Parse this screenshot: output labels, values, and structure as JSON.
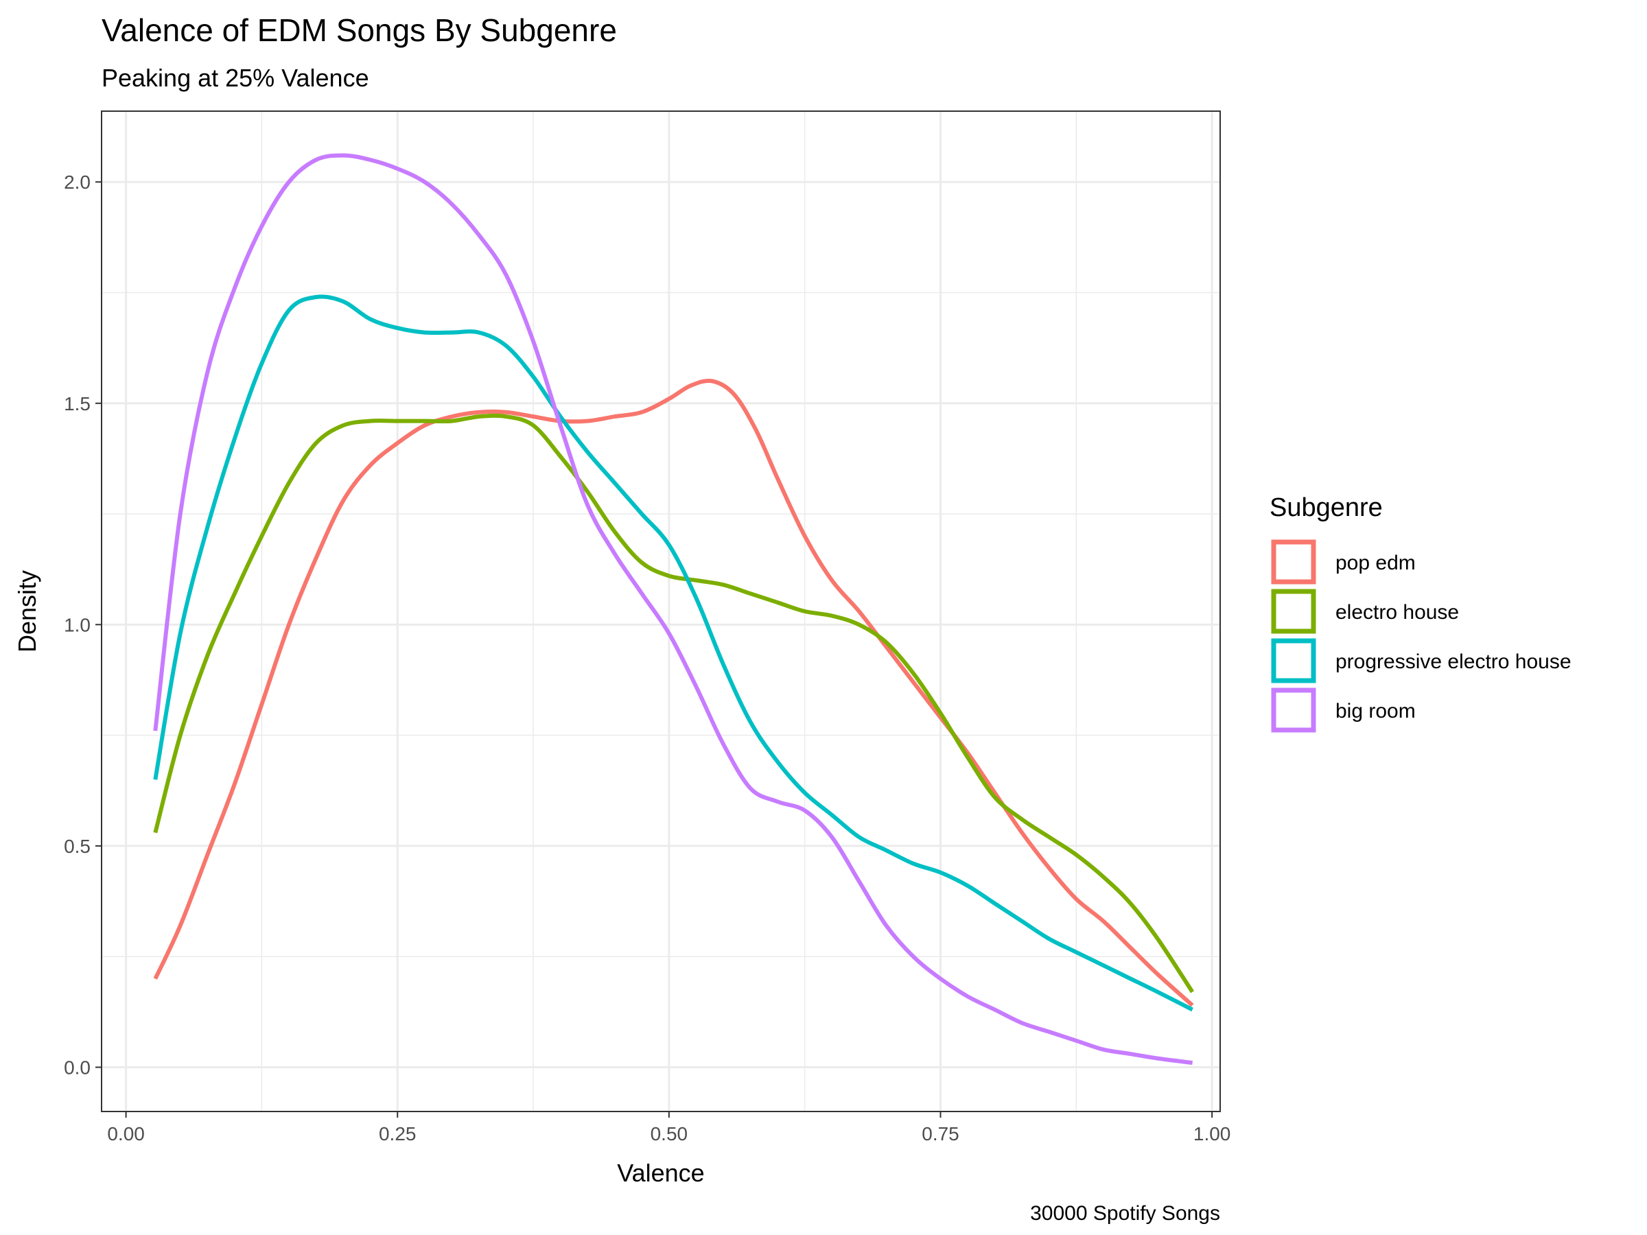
{
  "chart_data": {
    "type": "line",
    "title": "Valence of EDM Songs By Subgenre",
    "subtitle": "Peaking at 25% Valence",
    "caption": "30000 Spotify Songs",
    "xlabel": "Valence",
    "ylabel": "Density",
    "xlim": [
      -0.0225,
      1.0075
    ],
    "ylim": [
      -0.1,
      2.16
    ],
    "x_ticks": [
      0.0,
      0.25,
      0.5,
      0.75,
      1.0
    ],
    "x_tick_labels": [
      "0.00",
      "0.25",
      "0.50",
      "0.75",
      "1.00"
    ],
    "y_ticks": [
      0.0,
      0.5,
      1.0,
      1.5,
      2.0
    ],
    "y_tick_labels": [
      "0.0",
      "0.5",
      "1.0",
      "1.5",
      "2.0"
    ],
    "grid": true,
    "legend": {
      "title": "Subgenre",
      "position": "right"
    },
    "series": [
      {
        "name": "pop edm",
        "color": "#F8766D",
        "x": [
          0.027,
          0.05,
          0.075,
          0.1,
          0.125,
          0.15,
          0.175,
          0.2,
          0.225,
          0.25,
          0.275,
          0.3,
          0.325,
          0.35,
          0.375,
          0.4,
          0.425,
          0.45,
          0.475,
          0.5,
          0.52,
          0.54,
          0.56,
          0.58,
          0.6,
          0.625,
          0.65,
          0.675,
          0.7,
          0.725,
          0.75,
          0.775,
          0.8,
          0.825,
          0.85,
          0.875,
          0.9,
          0.925,
          0.95,
          0.982
        ],
        "values": [
          0.2,
          0.32,
          0.48,
          0.64,
          0.82,
          1.0,
          1.15,
          1.28,
          1.36,
          1.41,
          1.45,
          1.47,
          1.48,
          1.48,
          1.47,
          1.46,
          1.46,
          1.47,
          1.48,
          1.51,
          1.54,
          1.55,
          1.52,
          1.44,
          1.33,
          1.2,
          1.1,
          1.03,
          0.95,
          0.87,
          0.79,
          0.71,
          0.62,
          0.53,
          0.45,
          0.38,
          0.33,
          0.27,
          0.21,
          0.14
        ]
      },
      {
        "name": "electro house",
        "color": "#7CAE00",
        "x": [
          0.027,
          0.05,
          0.075,
          0.1,
          0.125,
          0.15,
          0.175,
          0.2,
          0.225,
          0.25,
          0.275,
          0.3,
          0.325,
          0.35,
          0.375,
          0.4,
          0.425,
          0.45,
          0.475,
          0.5,
          0.525,
          0.55,
          0.575,
          0.6,
          0.625,
          0.65,
          0.675,
          0.7,
          0.725,
          0.75,
          0.775,
          0.8,
          0.825,
          0.85,
          0.875,
          0.9,
          0.925,
          0.95,
          0.982
        ],
        "values": [
          0.53,
          0.75,
          0.93,
          1.07,
          1.2,
          1.32,
          1.41,
          1.45,
          1.46,
          1.46,
          1.46,
          1.46,
          1.47,
          1.47,
          1.45,
          1.38,
          1.3,
          1.21,
          1.14,
          1.11,
          1.1,
          1.09,
          1.07,
          1.05,
          1.03,
          1.02,
          1.0,
          0.96,
          0.89,
          0.8,
          0.7,
          0.61,
          0.56,
          0.52,
          0.48,
          0.43,
          0.37,
          0.29,
          0.17
        ]
      },
      {
        "name": "progressive electro house",
        "color": "#00BFC4",
        "x": [
          0.027,
          0.05,
          0.075,
          0.1,
          0.125,
          0.15,
          0.175,
          0.2,
          0.225,
          0.25,
          0.275,
          0.3,
          0.325,
          0.35,
          0.375,
          0.4,
          0.425,
          0.45,
          0.475,
          0.5,
          0.525,
          0.55,
          0.575,
          0.6,
          0.625,
          0.65,
          0.675,
          0.7,
          0.725,
          0.75,
          0.775,
          0.8,
          0.825,
          0.85,
          0.875,
          0.9,
          0.925,
          0.95,
          0.982
        ],
        "values": [
          0.65,
          0.98,
          1.22,
          1.42,
          1.59,
          1.71,
          1.74,
          1.73,
          1.69,
          1.67,
          1.66,
          1.66,
          1.66,
          1.63,
          1.56,
          1.47,
          1.39,
          1.32,
          1.25,
          1.18,
          1.06,
          0.91,
          0.78,
          0.69,
          0.62,
          0.57,
          0.52,
          0.49,
          0.46,
          0.44,
          0.41,
          0.37,
          0.33,
          0.29,
          0.26,
          0.23,
          0.2,
          0.17,
          0.13
        ]
      },
      {
        "name": "big room",
        "color": "#C77CFF",
        "x": [
          0.027,
          0.05,
          0.075,
          0.1,
          0.125,
          0.15,
          0.175,
          0.2,
          0.225,
          0.25,
          0.275,
          0.3,
          0.325,
          0.35,
          0.375,
          0.4,
          0.425,
          0.45,
          0.475,
          0.5,
          0.525,
          0.55,
          0.575,
          0.6,
          0.625,
          0.65,
          0.675,
          0.7,
          0.725,
          0.75,
          0.775,
          0.8,
          0.825,
          0.85,
          0.875,
          0.9,
          0.925,
          0.95,
          0.982
        ],
        "values": [
          0.76,
          1.25,
          1.57,
          1.76,
          1.9,
          2.0,
          2.05,
          2.06,
          2.05,
          2.03,
          2.0,
          1.95,
          1.88,
          1.79,
          1.64,
          1.45,
          1.27,
          1.16,
          1.07,
          0.98,
          0.86,
          0.73,
          0.63,
          0.6,
          0.58,
          0.52,
          0.42,
          0.32,
          0.25,
          0.2,
          0.16,
          0.13,
          0.1,
          0.08,
          0.06,
          0.04,
          0.03,
          0.02,
          0.01
        ]
      }
    ]
  }
}
